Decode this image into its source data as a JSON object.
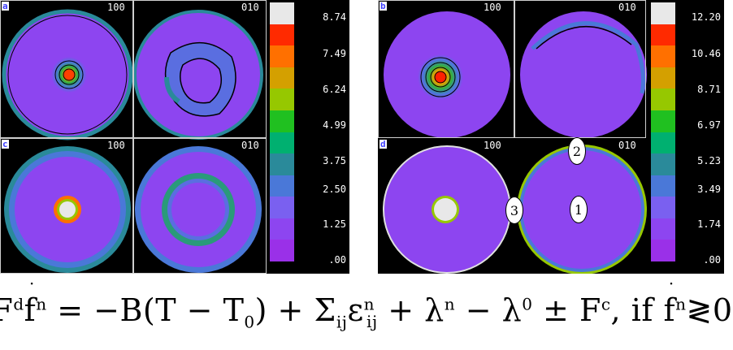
{
  "panels": [
    {
      "label": "a",
      "dir_left": "100",
      "dir_right": "010"
    },
    {
      "label": "b",
      "dir_left": "100",
      "dir_right": "010"
    },
    {
      "label": "c",
      "dir_left": "100",
      "dir_right": "010"
    },
    {
      "label": "d",
      "dir_left": "100",
      "dir_right": "010"
    }
  ],
  "left_scale": {
    "ticks": [
      "8.74",
      "7.49",
      "6.24",
      "4.99",
      "3.75",
      "2.50",
      "1.25",
      ".00"
    ]
  },
  "right_scale": {
    "ticks": [
      "12.20",
      "10.46",
      "8.71",
      "6.97",
      "5.23",
      "3.49",
      "1.74",
      ".00"
    ]
  },
  "colorbar_colors": [
    "#e8e8e8",
    "#ff2a00",
    "#ff7000",
    "#d4a000",
    "#96c800",
    "#20c020",
    "#00b070",
    "#2a8a9a",
    "#4a78d8",
    "#7a60f0",
    "#8d45f0",
    "#9a30e8"
  ],
  "markers": [
    "1",
    "2",
    "3"
  ],
  "equation": {
    "F": "F",
    "d": "d",
    "f": "f",
    "n": "n",
    "eq": " = −B(T − T",
    "zero": "0",
    "plus1": ") + Σ",
    "ij": "ij",
    "eps": "ε",
    "n2": "n",
    "ij2": "ij",
    "lam": " + λ",
    "n3": "n",
    "minus": " − λ",
    "zero2": "0",
    "pm": " ± F",
    "c": "c",
    "iff": ", if ",
    "f2": "f",
    "n4": "n",
    "cmp": "≷0"
  }
}
